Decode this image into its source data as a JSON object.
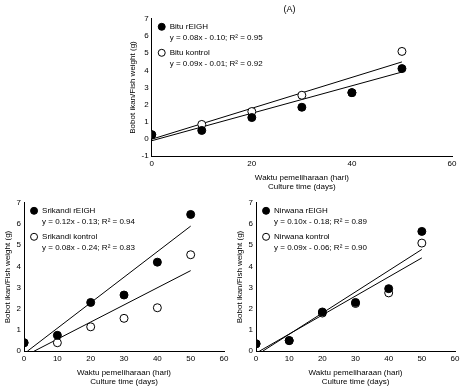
{
  "chart_data": [
    {
      "type": "scatter",
      "title": "(A)",
      "x_label": [
        "Waktu pemeliharaan (hari)",
        "Culture time (days)"
      ],
      "y_label": "Bobot ikan/Fish weight (g)",
      "x": [
        0,
        10,
        20,
        30,
        40,
        50
      ],
      "series": [
        {
          "name": "Bitu rEIGH",
          "equation": "y = 0.08x - 0.10; R² = 0.95",
          "color": "#000000",
          "marker": "filled",
          "values": [
            0.25,
            0.5,
            1.25,
            1.85,
            2.7,
            4.1
          ],
          "trendline": {
            "x": [
              0,
              50
            ],
            "y": [
              -0.1,
              3.9
            ]
          }
        },
        {
          "name": "Bitu kontrol",
          "equation": "y = 0.09x - 0.01; R² = 0.92",
          "color": "#000000",
          "marker": "open",
          "values": [
            0.25,
            0.85,
            1.6,
            2.55,
            2.7,
            5.1
          ],
          "trendline": {
            "x": [
              0,
              50
            ],
            "y": [
              -0.01,
              4.49
            ]
          }
        }
      ],
      "xlim": [
        0,
        60
      ],
      "xticks": [
        0,
        20,
        40,
        60
      ],
      "ylim": [
        -1,
        7
      ],
      "yticks": [
        -1,
        0,
        1,
        2,
        3,
        4,
        5,
        6,
        7
      ],
      "legend": "top-left",
      "grid": false
    },
    {
      "type": "scatter",
      "x_label": [
        "Waktu pemeliharaan (hari)",
        "Culture time (days)"
      ],
      "y_label": "Bobot ikan/Fish weight (g)",
      "x": [
        0,
        10,
        20,
        30,
        40,
        50
      ],
      "series": [
        {
          "name": "Srikandi rEIGH",
          "equation": "y = 0.12x - 0.13; R² = 0.94",
          "color": "#000000",
          "marker": "filled",
          "values": [
            0.4,
            0.75,
            2.3,
            2.65,
            4.2,
            6.45
          ],
          "trendline": {
            "x": [
              1,
              50
            ],
            "y": [
              0,
              5.9
            ]
          }
        },
        {
          "name": "Srikandi kontrol",
          "equation": "y = 0.08x - 0.24; R² = 0.83",
          "color": "#000000",
          "marker": "open",
          "values": [
            0.4,
            0.4,
            1.15,
            1.55,
            2.05,
            4.55
          ],
          "trendline": {
            "x": [
              3,
              50
            ],
            "y": [
              0,
              3.8
            ]
          }
        }
      ],
      "xlim": [
        0,
        60
      ],
      "xticks": [
        0,
        10,
        20,
        30,
        40,
        50,
        60
      ],
      "ylim": [
        0,
        7
      ],
      "yticks": [
        0,
        1,
        2,
        3,
        4,
        5,
        6,
        7
      ],
      "legend": "top-left",
      "grid": false
    },
    {
      "type": "scatter",
      "x_label": [
        "Waktu pemeliharaan (hari)",
        "Culture time (days)"
      ],
      "y_label": "Bobot ikan/Fish weight (g)",
      "x": [
        0,
        10,
        20,
        30,
        40,
        50
      ],
      "series": [
        {
          "name": "Nirwana rEIGH",
          "equation": "y = 0.10x - 0.18; R² = 0.89",
          "color": "#000000",
          "marker": "filled",
          "values": [
            0.35,
            0.5,
            1.85,
            2.3,
            2.95,
            5.65
          ],
          "trendline": {
            "x": [
              2,
              50
            ],
            "y": [
              0,
              4.8
            ]
          }
        },
        {
          "name": "Nirwana kontrol",
          "equation": "y = 0.09x - 0.06; R² = 0.90",
          "color": "#000000",
          "marker": "open",
          "values": [
            0.35,
            0.5,
            1.8,
            2.25,
            2.75,
            5.1
          ],
          "trendline": {
            "x": [
              1,
              50
            ],
            "y": [
              0,
              4.4
            ]
          }
        }
      ],
      "xlim": [
        0,
        60
      ],
      "xticks": [
        0,
        10,
        20,
        30,
        40,
        50,
        60
      ],
      "ylim": [
        0,
        7
      ],
      "yticks": [
        0,
        1,
        2,
        3,
        4,
        5,
        6,
        7
      ],
      "legend": "top-left",
      "grid": false
    }
  ]
}
